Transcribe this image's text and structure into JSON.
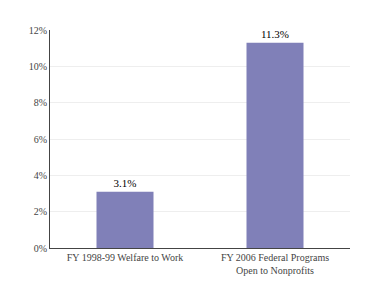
{
  "chart_data": {
    "type": "bar",
    "categories": [
      "FY 1998-99 Welfare to Work",
      "FY 2006 Federal Programs\nOpen to Nonprofits"
    ],
    "values": [
      3.1,
      11.3
    ],
    "value_labels": [
      "3.1%",
      "11.3%"
    ],
    "data_labels": true,
    "color": "#8080b8",
    "ylim": [
      0,
      12
    ],
    "yticks": [
      {
        "value": 0,
        "label": "0%"
      },
      {
        "value": 2,
        "label": "2%"
      },
      {
        "value": 4,
        "label": "4%"
      },
      {
        "value": 6,
        "label": "6%"
      },
      {
        "value": 8,
        "label": "8%"
      },
      {
        "value": 10,
        "label": "10%"
      },
      {
        "value": 12,
        "label": "12%"
      }
    ],
    "grid": true
  }
}
